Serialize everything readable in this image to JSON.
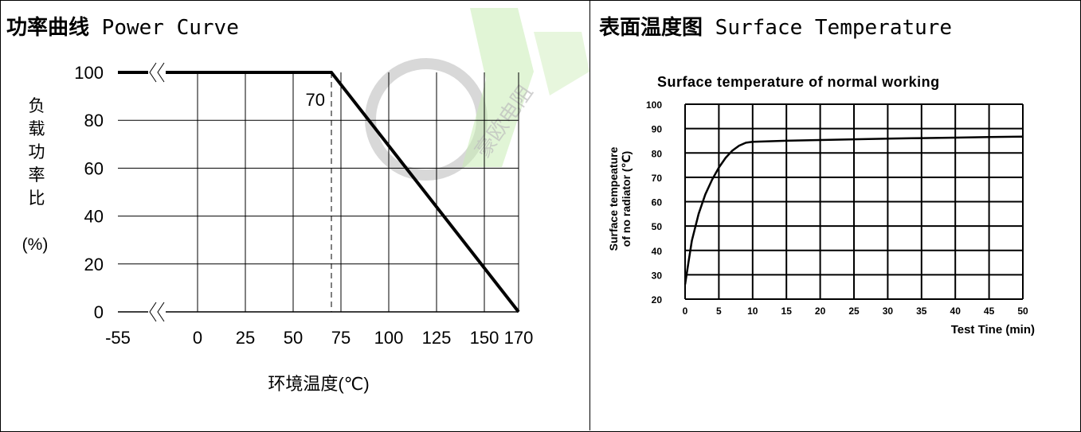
{
  "left_panel": {
    "title_zh": "功率曲线",
    "title_en": "Power Curve"
  },
  "right_panel": {
    "title_zh": "表面温度图",
    "title_en": "Surface Temperature"
  },
  "watermark_text": "豪欧电阻",
  "chart_data": [
    {
      "type": "line",
      "title": "",
      "xlabel": "环境温度(℃)",
      "ylabel_zh": [
        "负",
        "载",
        "功",
        "率",
        "比"
      ],
      "ylabel_unit": "(%)",
      "x_tick_labels": [
        "-55",
        "0",
        "25",
        "50",
        "75",
        "100",
        "125",
        "150",
        "170"
      ],
      "y_tick_labels": [
        "0",
        "20",
        "40",
        "60",
        "80",
        "100"
      ],
      "ylim": [
        0,
        100
      ],
      "axis_breaks": [
        "y=100",
        "y=0"
      ],
      "grid": true,
      "annotation": "70",
      "annotation_dashed_x": 70,
      "series": [
        {
          "x": [
            -55,
            70,
            170
          ],
          "y": [
            100,
            100,
            0
          ]
        }
      ]
    },
    {
      "type": "line",
      "title": "Surface temperature of normal working",
      "xlabel": "Test Tine (min)",
      "ylabel": [
        "Surface tempeature",
        "of no radiator (℃)"
      ],
      "x_ticks": [
        0,
        5,
        10,
        15,
        20,
        25,
        30,
        35,
        40,
        45,
        50
      ],
      "y_ticks": [
        20,
        30,
        40,
        50,
        60,
        70,
        80,
        90,
        100
      ],
      "xlim": [
        0,
        50
      ],
      "ylim": [
        20,
        100
      ],
      "grid": true,
      "series": [
        {
          "x": [
            0,
            0.5,
            1,
            2,
            3,
            4,
            5,
            6,
            7,
            8,
            9,
            10,
            15,
            20,
            25,
            30,
            35,
            40,
            45,
            50
          ],
          "y": [
            26,
            35,
            44,
            55,
            63,
            69,
            74,
            78,
            81,
            83,
            84.2,
            84.6,
            85,
            85.3,
            85.6,
            85.9,
            86.1,
            86.3,
            86.5,
            86.7
          ]
        }
      ]
    }
  ]
}
